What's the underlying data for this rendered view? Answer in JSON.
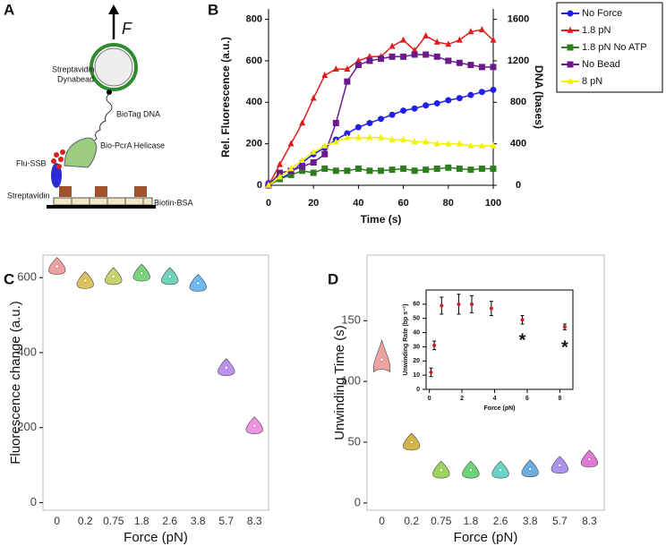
{
  "diagram": {
    "panel": "A",
    "force": "F",
    "bead": [
      "Streptavidin",
      "Dynabead"
    ],
    "dna": "BioTag DNA",
    "ssb": "Flu-SSB",
    "helicase": "Bio-PcrA Helicase",
    "streptavidin": "Streptavidin",
    "surface": "Biotin-BSA"
  },
  "chart_data": [
    {
      "panel": "B",
      "type": "line",
      "x_label": "Time (s)",
      "y_label": "Rel. Fluorescence (a.u.)",
      "y2_label": "DNA (bases)",
      "x": [
        0,
        5,
        10,
        15,
        20,
        25,
        30,
        35,
        40,
        45,
        50,
        55,
        60,
        65,
        70,
        75,
        80,
        85,
        90,
        95,
        100
      ],
      "xlim": [
        0,
        100
      ],
      "xticks": [
        0,
        20,
        40,
        60,
        80,
        100
      ],
      "ylim": [
        0,
        850
      ],
      "yticks": [
        0,
        200,
        400,
        600,
        800
      ],
      "y2lim": [
        0,
        1700
      ],
      "y2ticks": [
        0,
        400,
        800,
        1200,
        1600
      ],
      "legend": "outside right",
      "series": [
        {
          "name": "No Force",
          "color": "#1f1fe6",
          "marker": "circle",
          "values": [
            10,
            30,
            60,
            110,
            150,
            180,
            220,
            250,
            280,
            300,
            320,
            340,
            360,
            370,
            385,
            395,
            410,
            420,
            435,
            450,
            460
          ]
        },
        {
          "name": "1.8 pN",
          "color": "#e01c1c",
          "marker": "triangle",
          "values": [
            0,
            100,
            200,
            300,
            420,
            530,
            560,
            560,
            600,
            620,
            620,
            670,
            700,
            650,
            720,
            690,
            680,
            700,
            740,
            750,
            700
          ]
        },
        {
          "name": "1.8 pN No ATP",
          "color": "#2e7d1e",
          "marker": "square",
          "values": [
            0,
            30,
            50,
            70,
            60,
            80,
            70,
            70,
            80,
            70,
            70,
            75,
            80,
            70,
            75,
            80,
            85,
            80,
            75,
            80,
            80
          ]
        },
        {
          "name": "No Bead",
          "color": "#6a1a8a",
          "marker": "square",
          "values": [
            0,
            60,
            70,
            90,
            110,
            150,
            300,
            500,
            580,
            600,
            610,
            620,
            620,
            630,
            630,
            620,
            600,
            590,
            580,
            570,
            570
          ]
        },
        {
          "name": "8 pN",
          "color": "#f2f200",
          "marker": "triangle",
          "values": [
            0,
            40,
            80,
            120,
            160,
            190,
            210,
            230,
            230,
            230,
            230,
            220,
            220,
            210,
            210,
            200,
            200,
            200,
            190,
            190,
            190
          ]
        }
      ]
    },
    {
      "panel": "C",
      "type": "violin",
      "x_label": "Force (pN)",
      "y_label": "Fluorescence change (a.u.)",
      "categories": [
        "0",
        "0.2",
        "0.75",
        "1.8",
        "2.6",
        "3.8",
        "5.7",
        "8.3"
      ],
      "values": [
        630,
        592,
        603,
        612,
        603,
        585,
        360,
        205
      ],
      "colors": [
        "#e88a8a",
        "#d4b03a",
        "#b8c84a",
        "#5cc85c",
        "#4ac8a8",
        "#4aa8e8",
        "#a878e8",
        "#e878d8"
      ],
      "ylim": [
        -20,
        660
      ],
      "yticks": [
        0,
        200,
        400,
        600
      ]
    },
    {
      "panel": "D",
      "type": "violin",
      "x_label": "Force (pN)",
      "y_label": "Unwinding Time (s)",
      "categories": [
        "0",
        "0.2",
        "0.75",
        "1.8",
        "2.6",
        "3.8",
        "5.7",
        "8.3"
      ],
      "values": [
        118,
        50,
        27,
        27,
        27,
        28,
        31,
        36
      ],
      "colors": [
        "#e88a8a",
        "#c8a020",
        "#8ac83a",
        "#48c858",
        "#48c8b8",
        "#4898d8",
        "#9878e8",
        "#d858c8"
      ],
      "ylim": [
        -6,
        204
      ],
      "yticks": [
        0,
        50,
        100,
        150
      ]
    },
    {
      "type": "scatter",
      "x_label": "Force (pN)",
      "y_label": "Unwinding Rate (bp s⁻¹)",
      "x": [
        0.1,
        0.3,
        0.75,
        1.8,
        2.6,
        3.8,
        5.7,
        8.3
      ],
      "values": [
        12,
        31,
        59,
        60,
        60,
        57,
        49,
        44
      ],
      "errors": [
        3,
        3,
        6,
        7,
        6,
        5,
        3,
        2
      ],
      "significance": [
        null,
        null,
        null,
        null,
        null,
        null,
        "*",
        "*"
      ],
      "color": "#c81e1e",
      "xlim": [
        -0.2,
        8.8
      ],
      "xticks": [
        0,
        2,
        4,
        6,
        8
      ],
      "ylim": [
        0,
        70
      ],
      "yticks": [
        0,
        10,
        20,
        30,
        40,
        50,
        60
      ]
    }
  ]
}
